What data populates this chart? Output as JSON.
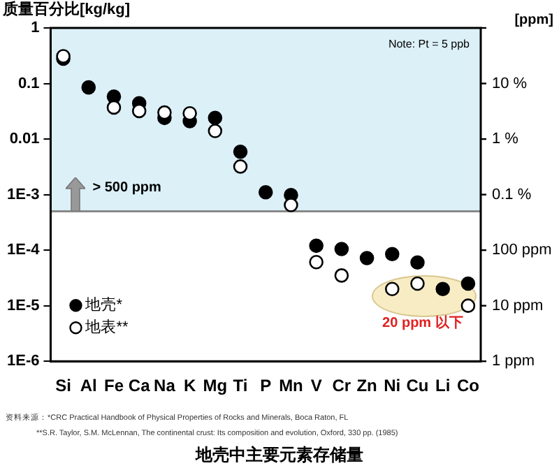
{
  "chart_data": {
    "type": "scatter",
    "title": "地壳中主要元素存储量",
    "ylabel": "质量百分比[kg/kg]",
    "y2label": "[ppm]",
    "categories": [
      "Si",
      "Al",
      "Fe",
      "Ca",
      "Na",
      "K",
      "Mg",
      "Ti",
      "P",
      "Mn",
      "V",
      "Cr",
      "Zn",
      "Ni",
      "Cu",
      "Li",
      "Co"
    ],
    "series": [
      {
        "name": "地壳*",
        "color": "#000000",
        "values": [
          0.28,
          0.085,
          0.058,
          0.044,
          0.024,
          0.021,
          0.024,
          0.0059,
          0.0011,
          0.00098,
          0.00012,
          0.000105,
          7.2e-05,
          8.5e-05,
          6e-05,
          2e-05,
          2.5e-05
        ]
      },
      {
        "name": "地表**",
        "color": "#ffffff",
        "values": [
          0.31,
          null,
          0.037,
          0.032,
          0.03,
          0.029,
          0.014,
          0.0032,
          null,
          0.00065,
          6.1e-05,
          3.5e-05,
          null,
          2e-05,
          2.5e-05,
          null,
          1e-05
        ]
      }
    ],
    "ylim": [
      1e-06,
      1
    ],
    "yticks": [
      1,
      0.1,
      0.01,
      {
        "value": 0.001,
        "label": "1E-3"
      },
      {
        "value": 0.0001,
        "label": "1E-4"
      },
      {
        "value": 1e-05,
        "label": "1E-5"
      },
      {
        "value": 1e-06,
        "label": "1E-6"
      }
    ],
    "ref_lines": [
      {
        "axis": "y",
        "value": 0.0005,
        "color": "#888888"
      }
    ],
    "bands": [
      {
        "axis": "y",
        "from": 0.0005,
        "to": 1,
        "label": "> 500 ppm",
        "color": "#dcf0f8"
      }
    ],
    "annotations": [
      "Note: Pt = 5 ppb",
      "20 ppm 以下",
      "资料来源：*CRC Practical Handbook of Physical Properties of Rocks and Minerals, Boca Raton, FL",
      "**S.R. Taylor, S.M. McLennan, The continental crust: Its composition and evolution, Oxford, 330 pp. (1985)",
      "10 %",
      "1 %",
      "0.1 %",
      "100 ppm",
      "10 ppm",
      "1 ppm"
    ],
    "marker": "circle",
    "legend": "bottom left",
    "grid": false,
    "log": true
  }
}
